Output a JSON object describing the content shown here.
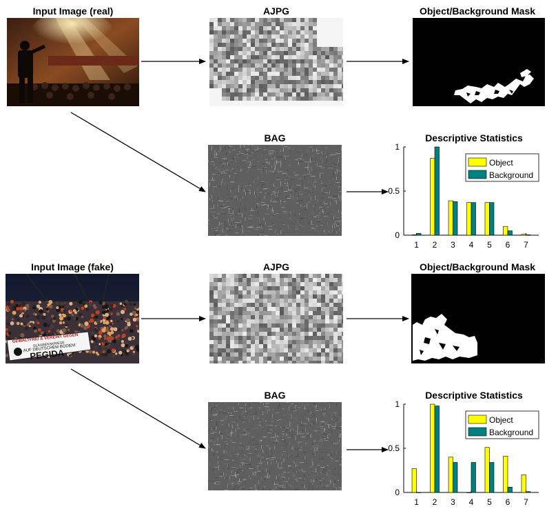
{
  "rows": [
    {
      "input_title": "Input Image (real)",
      "ajpg_title": "AJPG",
      "mask_title": "Object/Background Mask",
      "bag_title": "BAG",
      "stats_title": "Descriptive Statistics",
      "input_text": [
        "",
        "",
        "",
        "",
        ""
      ]
    },
    {
      "input_title": "Input Image (fake)",
      "ajpg_title": "AJPG",
      "mask_title": "Object/Background Mask",
      "bag_title": "BAG",
      "stats_title": "Descriptive Statistics",
      "banner_lines": [
        "GEWALTFREI & VEREINT GEGEN",
        "GLAUBENSKRIEGE",
        "AUF DEUTSCHEM BODEN!",
        "PEGIDA"
      ]
    }
  ],
  "colors": {
    "object": "#ffff00",
    "background": "#008080"
  },
  "chart_data": [
    {
      "type": "bar",
      "title": "Descriptive Statistics",
      "categories": [
        "1",
        "2",
        "3",
        "4",
        "5",
        "6",
        "7"
      ],
      "series": [
        {
          "name": "Object",
          "values": [
            0.005,
            0.87,
            0.39,
            0.37,
            0.37,
            0.1,
            0.01
          ]
        },
        {
          "name": "Background",
          "values": [
            0.02,
            1.0,
            0.38,
            0.37,
            0.37,
            0.05,
            0.005
          ]
        }
      ],
      "ylim": [
        0,
        1
      ],
      "yticks": [
        "0",
        "0.5",
        "1"
      ],
      "legend": "top-right"
    },
    {
      "type": "bar",
      "title": "Descriptive Statistics",
      "categories": [
        "1",
        "2",
        "3",
        "4",
        "5",
        "6",
        "7"
      ],
      "series": [
        {
          "name": "Object",
          "values": [
            0.27,
            1.0,
            0.4,
            0.0,
            0.51,
            0.41,
            0.2
          ]
        },
        {
          "name": "Background",
          "values": [
            0.0,
            0.98,
            0.34,
            0.34,
            0.34,
            0.06,
            0.01
          ]
        }
      ],
      "ylim": [
        0,
        1
      ],
      "yticks": [
        "0",
        "0.5",
        "1"
      ],
      "legend": "top-right"
    }
  ]
}
